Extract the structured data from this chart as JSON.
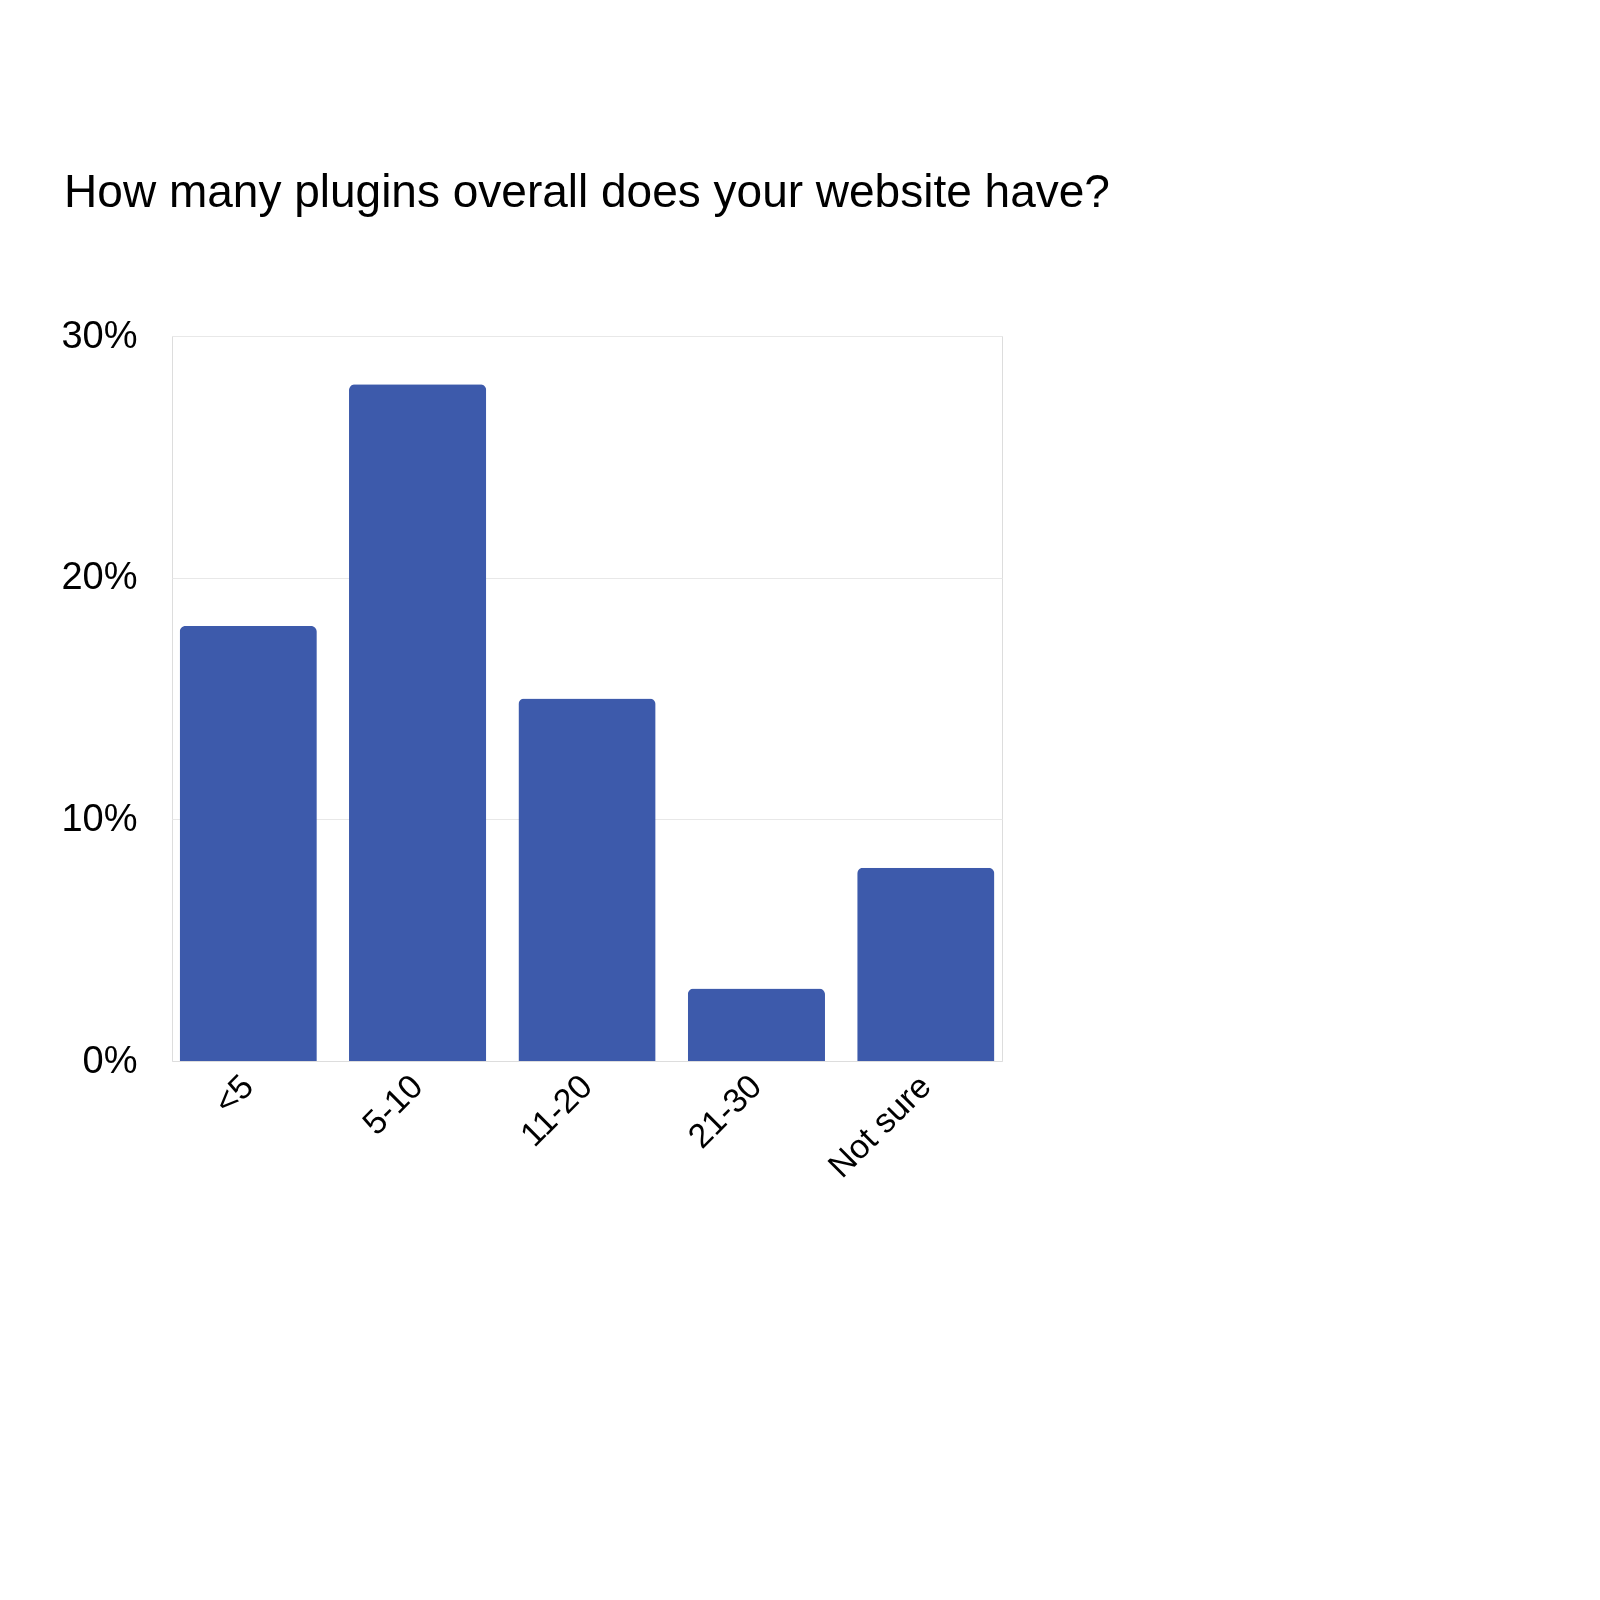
{
  "chart_data": {
    "type": "bar",
    "title": "How many plugins overall does your website have?",
    "categories": [
      "<5",
      "5-10",
      "11-20",
      "21-30",
      "Not sure"
    ],
    "values": [
      18,
      28,
      15,
      3,
      8
    ],
    "color": "#3d5aab",
    "ylim": [
      0,
      30
    ],
    "yticks": [
      {
        "value": 0,
        "label": "0%"
      },
      {
        "value": 10,
        "label": "10%"
      },
      {
        "value": 20,
        "label": "20%"
      },
      {
        "value": 30,
        "label": "30%"
      }
    ],
    "grid": "y"
  }
}
